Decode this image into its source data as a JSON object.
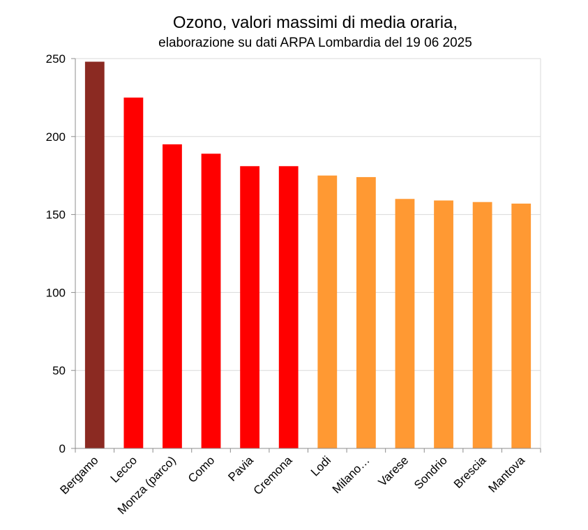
{
  "chart_data": {
    "type": "bar",
    "title": "Ozono, valori massimi di media oraria,",
    "subtitle": "elaborazione su dati ARPA Lombardia del 19 06 2025",
    "xlabel": "",
    "ylabel": "",
    "ylim": [
      0,
      250
    ],
    "yticks": [
      0,
      50,
      100,
      150,
      200,
      250
    ],
    "grid": true,
    "legend": "none",
    "categories": [
      "Bergamo",
      "Lecco",
      "Monza (parco)",
      "Como",
      "Pavia",
      "Cremona",
      "Lodi",
      "Milano…",
      "Varese",
      "Sondrio",
      "Brescia",
      "Mantova"
    ],
    "values": [
      248,
      225,
      195,
      189,
      181,
      181,
      175,
      174,
      160,
      159,
      158,
      157
    ],
    "bar_colors": [
      "#8b2a22",
      "#ff0000",
      "#ff0000",
      "#ff0000",
      "#ff0000",
      "#ff0000",
      "#ff9933",
      "#ff9933",
      "#ff9933",
      "#ff9933",
      "#ff9933",
      "#ff9933"
    ],
    "grid_color": "#d9d9d9",
    "axis_color": "#8c8c8c"
  }
}
